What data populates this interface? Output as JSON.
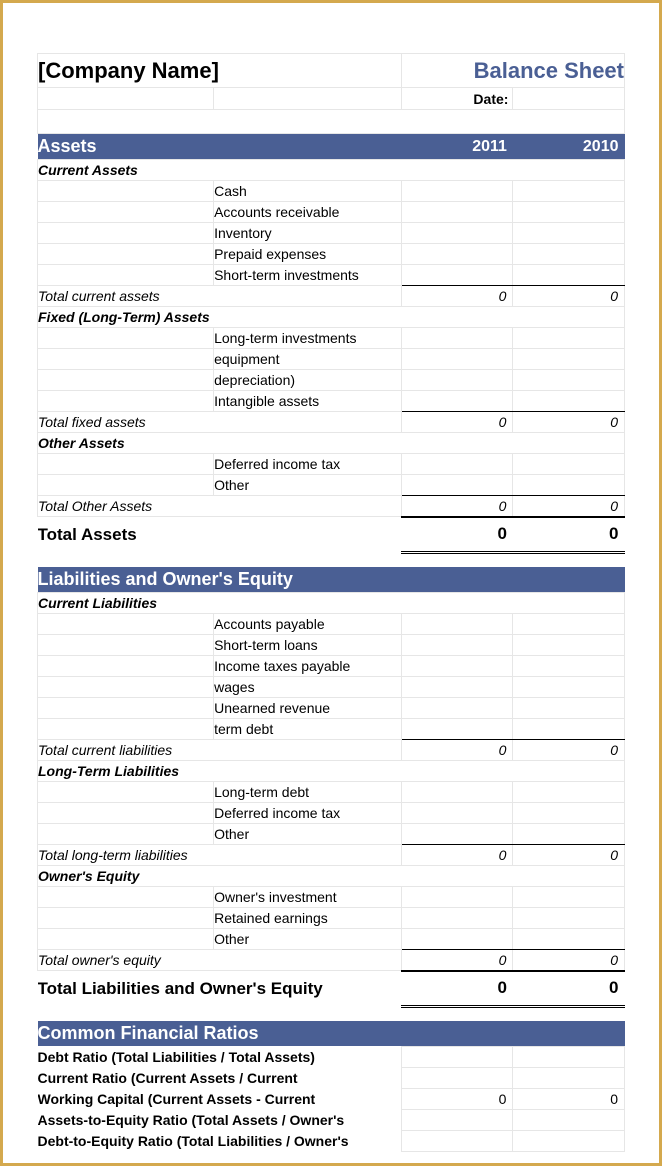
{
  "header": {
    "company": "[Company Name]",
    "title": "Balance Sheet",
    "date_label": "Date:"
  },
  "assets": {
    "section": "Assets",
    "year1": "2011",
    "year2": "2010",
    "current": {
      "label": "Current Assets",
      "items": [
        "Cash",
        "Accounts receivable",
        "Inventory",
        "Prepaid expenses",
        "Short-term investments"
      ],
      "total_label": "Total current assets",
      "total_y1": "0",
      "total_y2": "0"
    },
    "fixed": {
      "label": "Fixed (Long-Term) Assets",
      "items": [
        "Long-term investments",
        "equipment",
        "depreciation)",
        "Intangible assets"
      ],
      "total_label": "Total fixed assets",
      "total_y1": "0",
      "total_y2": "0"
    },
    "other": {
      "label": "Other Assets",
      "items": [
        "Deferred income tax",
        "Other"
      ],
      "total_label": "Total Other Assets",
      "total_y1": "0",
      "total_y2": "0"
    },
    "grand_label": "Total Assets",
    "grand_y1": "0",
    "grand_y2": "0"
  },
  "liab": {
    "section": "Liabilities and Owner's Equity",
    "current": {
      "label": "Current Liabilities",
      "items": [
        "Accounts payable",
        "Short-term loans",
        "Income taxes payable",
        "wages",
        "Unearned revenue",
        "term debt"
      ],
      "total_label": "Total current liabilities",
      "total_y1": "0",
      "total_y2": "0"
    },
    "longterm": {
      "label": "Long-Term Liabilities",
      "items": [
        "Long-term debt",
        "Deferred income tax",
        "Other"
      ],
      "total_label": "Total long-term liabilities",
      "total_y1": "0",
      "total_y2": "0"
    },
    "equity": {
      "label": "Owner's Equity",
      "items": [
        "Owner's investment",
        "Retained earnings",
        "Other"
      ],
      "total_label": "Total owner's equity",
      "total_y1": "0",
      "total_y2": "0"
    },
    "grand_label": "Total Liabilities and Owner's Equity",
    "grand_y1": "0",
    "grand_y2": "0"
  },
  "ratios": {
    "section": "Common Financial Ratios",
    "rows": [
      {
        "label": "Debt Ratio (Total Liabilities / Total Assets)",
        "y1": "",
        "y2": ""
      },
      {
        "label": "Current Ratio (Current Assets / Current",
        "y1": "",
        "y2": ""
      },
      {
        "label": "Working Capital (Current Assets - Current",
        "y1": "0",
        "y2": "0"
      },
      {
        "label": "Assets-to-Equity Ratio (Total Assets / Owner's",
        "y1": "",
        "y2": ""
      },
      {
        "label": "Debt-to-Equity Ratio (Total Liabilities / Owner's",
        "y1": "",
        "y2": ""
      }
    ]
  },
  "style": {
    "section_bg": "#4a5f94",
    "section_fg": "#ffffff",
    "border_color": "#e6e6e6",
    "frame_color": "#d4a94e"
  }
}
